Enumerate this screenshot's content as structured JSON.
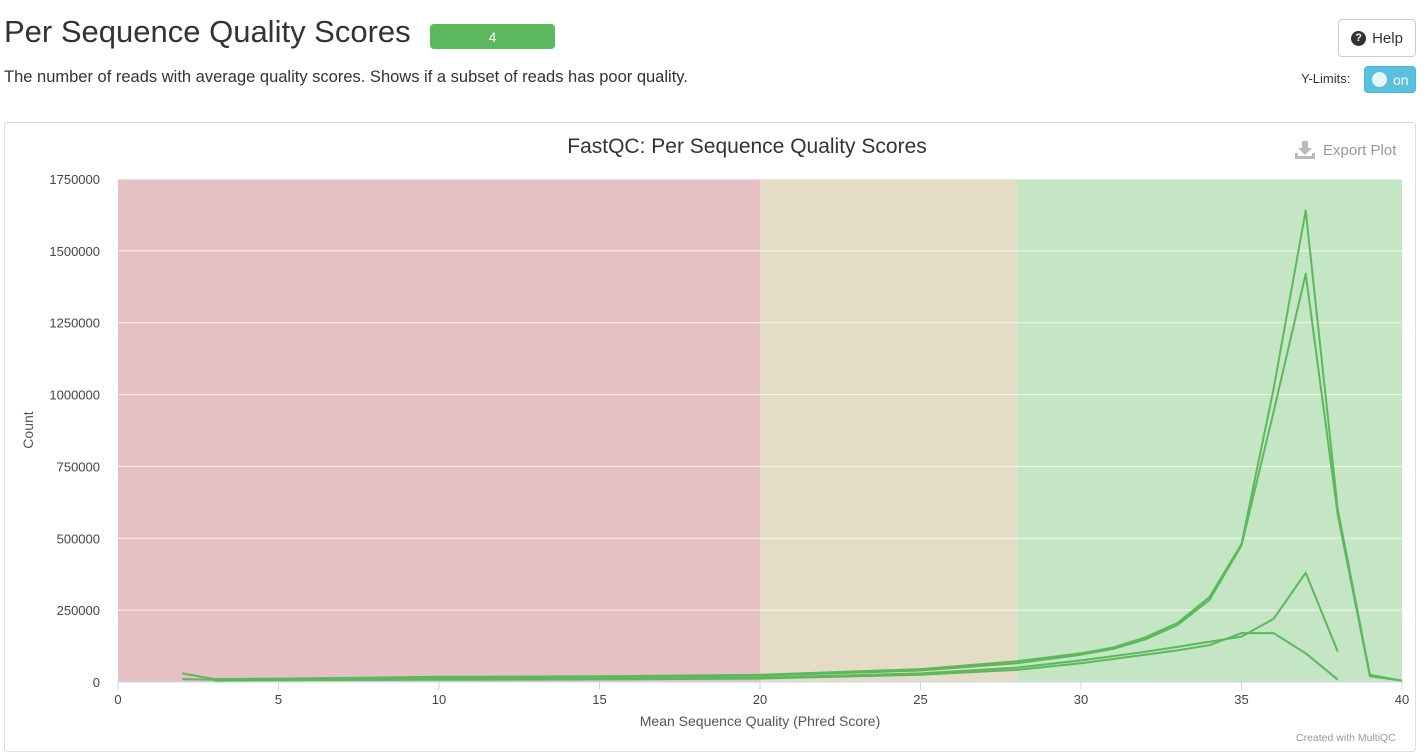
{
  "header": {
    "title": "Per Sequence Quality Scores",
    "badge": "4",
    "help_label": "Help",
    "description": "The number of reads with average quality scores. Shows if a subset of reads has poor quality.",
    "ylimits_label": "Y-Limits:",
    "toggle_label": "on"
  },
  "plot": {
    "export_label": "Export Plot",
    "credit": "Created with MultiQC"
  },
  "colors": {
    "fail_band": "#e5c1c4",
    "warn_band": "#e5dcc5",
    "pass_band": "#c5e6c5",
    "line": "#5cb85c"
  },
  "chart_data": {
    "type": "line",
    "title": "FastQC: Per Sequence Quality Scores",
    "xlabel": "Mean Sequence Quality (Phred Score)",
    "ylabel": "Count",
    "xlim": [
      0,
      40
    ],
    "ylim": [
      0,
      1750000
    ],
    "x_ticks": [
      0,
      5,
      10,
      15,
      20,
      25,
      30,
      35,
      40
    ],
    "y_ticks": [
      0,
      250000,
      500000,
      750000,
      1000000,
      1250000,
      1500000,
      1750000
    ],
    "grid": true,
    "bands": [
      {
        "from": 0,
        "to": 20,
        "status": "fail"
      },
      {
        "from": 20,
        "to": 28,
        "status": "warn"
      },
      {
        "from": 28,
        "to": 40,
        "status": "pass"
      }
    ],
    "series": [
      {
        "x": [
          2,
          3,
          5,
          10,
          15,
          20,
          25,
          28,
          30,
          31,
          32,
          33,
          34,
          35,
          36,
          37,
          38,
          39,
          40
        ],
        "values": [
          30000,
          10000,
          12000,
          18000,
          20000,
          25000,
          45000,
          72000,
          100000,
          120000,
          155000,
          205000,
          295000,
          480000,
          1020000,
          1640000,
          600000,
          25000,
          5000
        ]
      },
      {
        "x": [
          2,
          3,
          5,
          10,
          15,
          20,
          25,
          28,
          30,
          31,
          32,
          33,
          34,
          35,
          36,
          37,
          38,
          39,
          40
        ],
        "values": [
          10000,
          8000,
          10000,
          15000,
          18000,
          22000,
          40000,
          65000,
          95000,
          115000,
          148000,
          198000,
          285000,
          475000,
          940000,
          1420000,
          580000,
          20000,
          5000
        ]
      },
      {
        "x": [
          3,
          5,
          10,
          15,
          20,
          25,
          28,
          30,
          31,
          32,
          33,
          34,
          35,
          36,
          37,
          38
        ],
        "values": [
          5000,
          7000,
          10000,
          12000,
          15000,
          30000,
          50000,
          75000,
          90000,
          105000,
          122000,
          140000,
          158000,
          220000,
          380000,
          105000
        ]
      },
      {
        "x": [
          3,
          5,
          10,
          15,
          20,
          25,
          28,
          30,
          31,
          32,
          33,
          34,
          35,
          36,
          37,
          38
        ],
        "values": [
          5000,
          6000,
          8000,
          9000,
          12000,
          25000,
          42000,
          65000,
          80000,
          95000,
          110000,
          128000,
          170000,
          170000,
          100000,
          8000
        ]
      }
    ]
  }
}
